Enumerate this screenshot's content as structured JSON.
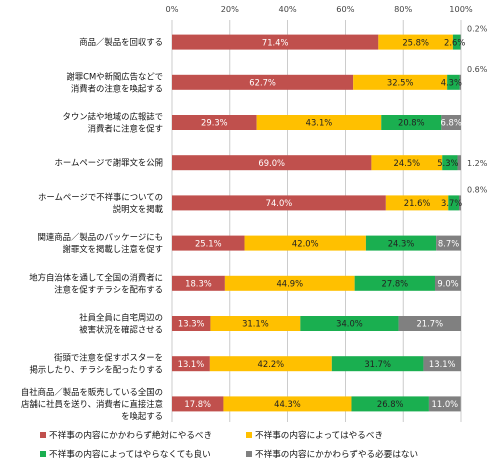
{
  "chart_data": {
    "type": "bar",
    "orientation": "horizontal",
    "stacked": true,
    "title": "",
    "xlabel": "",
    "ylabel": "",
    "xlim": [
      0,
      100
    ],
    "x_ticks": [
      "0%",
      "20%",
      "40%",
      "60%",
      "80%",
      "100%"
    ],
    "grid": true,
    "legend_position": "bottom",
    "categories": [
      [
        "商品／製品を回収する"
      ],
      [
        "謝罪CMや新聞広告などで",
        "消費者の注意を喚起する"
      ],
      [
        "タウン誌や地域の広報誌で",
        "消費者に注意を促す"
      ],
      [
        "ホームページで謝罪文を公開"
      ],
      [
        "ホームページで不祥事についての",
        "説明文を掲載"
      ],
      [
        "関連商品／製品のパッケージにも",
        "謝罪文を掲載し注意を促す"
      ],
      [
        "地方自治体を通して全国の消費者に",
        "注意を促すチラシを配布する"
      ],
      [
        "社員全員に自宅周辺の",
        "被害状況を確認させる"
      ],
      [
        "街頭で注意を促すポスターを",
        "掲示したり、チラシを配ったりする"
      ],
      [
        "自社商品／製品を販売している全国の",
        "店舗に社員を送り、消費者に直接注意",
        "を喚起する"
      ]
    ],
    "series": [
      {
        "name": "不祥事の内容にかかわらず絶対にやるべき",
        "color": "#c0504d",
        "values": [
          71.4,
          62.7,
          29.3,
          69.0,
          74.0,
          25.1,
          18.3,
          13.3,
          13.1,
          17.8
        ]
      },
      {
        "name": "不祥事の内容によってはやるべき",
        "color": "#ffc000",
        "values": [
          25.8,
          32.5,
          43.1,
          24.5,
          21.6,
          42.0,
          44.9,
          31.1,
          42.2,
          44.3
        ]
      },
      {
        "name": "不祥事の内容によってはやらなくても良い",
        "color": "#1aaf50",
        "values": [
          2.6,
          4.3,
          20.8,
          5.3,
          3.7,
          24.3,
          27.8,
          34.0,
          31.7,
          26.8
        ]
      },
      {
        "name": "不祥事の内容にかかわらずやる必要はない",
        "color": "#808080",
        "values": [
          0.2,
          0.6,
          6.8,
          1.2,
          0.8,
          8.7,
          9.0,
          21.7,
          13.1,
          11.0
        ]
      }
    ],
    "data_labels": [
      [
        "71.4%",
        "25.8%",
        "2.6%",
        "0.2%"
      ],
      [
        "62.7%",
        "32.5%",
        "4.3%",
        "0.6%"
      ],
      [
        "29.3%",
        "43.1%",
        "20.8%",
        "6.8%"
      ],
      [
        "69.0%",
        "24.5%",
        "5.3%",
        "1.2%"
      ],
      [
        "74.0%",
        "21.6%",
        "3.7%",
        "0.8%"
      ],
      [
        "25.1%",
        "42.0%",
        "24.3%",
        "8.7%"
      ],
      [
        "18.3%",
        "44.9%",
        "27.8%",
        "9.0%"
      ],
      [
        "13.3%",
        "31.1%",
        "34.0%",
        "21.7%"
      ],
      [
        "13.1%",
        "42.2%",
        "31.7%",
        "13.1%"
      ],
      [
        "17.8%",
        "44.3%",
        "26.8%",
        "11.0%"
      ]
    ]
  }
}
